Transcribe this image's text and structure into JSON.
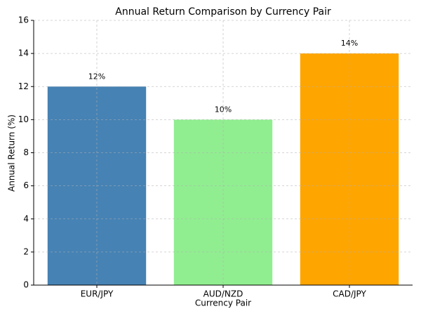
{
  "chart_data": {
    "type": "bar",
    "title": "Annual Return Comparison by Currency Pair",
    "x_label": "Currency Pair",
    "y_label": "Annual Return (%)",
    "categories": [
      "EUR/JPY",
      "AUD/NZD",
      "CAD/JPY"
    ],
    "values": [
      12,
      10,
      14
    ],
    "value_labels": [
      "12%",
      "10%",
      "14%"
    ],
    "colors": [
      "#4682b4",
      "#90ee90",
      "#ffa500"
    ],
    "ylim": [
      0,
      16
    ],
    "yticks": [
      0,
      2,
      4,
      6,
      8,
      10,
      12,
      14,
      16
    ],
    "grid": true
  }
}
